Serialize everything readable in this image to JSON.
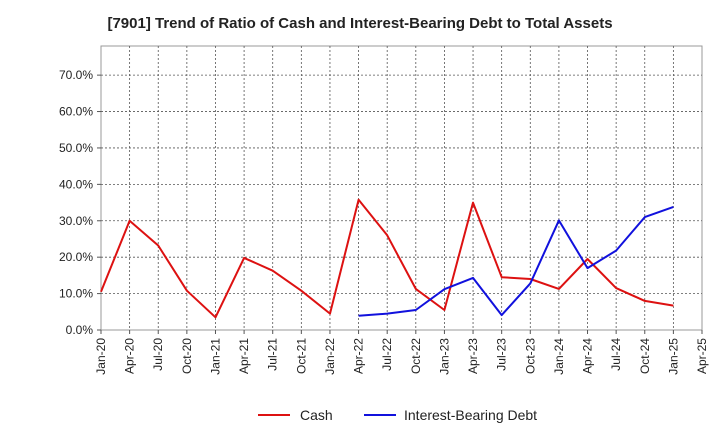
{
  "chart_data": {
    "type": "line",
    "title": "[7901]  Trend of Ratio of Cash and Interest-Bearing Debt to Total Assets",
    "xlabel": "",
    "ylabel": "",
    "ylim": [
      0,
      0.78
    ],
    "y_ticks": [
      0,
      0.1,
      0.2,
      0.3,
      0.4,
      0.5,
      0.6,
      0.7
    ],
    "y_tick_labels": [
      "0.0%",
      "10.0%",
      "20.0%",
      "30.0%",
      "40.0%",
      "50.0%",
      "60.0%",
      "70.0%"
    ],
    "x_ticks": [
      "Jan-20",
      "Apr-20",
      "Jul-20",
      "Oct-20",
      "Jan-21",
      "Apr-21",
      "Jul-21",
      "Oct-21",
      "Jan-22",
      "Apr-22",
      "Jul-22",
      "Oct-22",
      "Jan-23",
      "Apr-23",
      "Jul-23",
      "Oct-23",
      "Jan-24",
      "Apr-24",
      "Jul-24",
      "Oct-24",
      "Jan-25",
      "Apr-25"
    ],
    "grid": true,
    "legend_position": "bottom",
    "series": [
      {
        "name": "Cash",
        "color": "#dd1111",
        "x": [
          "Jan-20",
          "Apr-20",
          "Jul-20",
          "Oct-20",
          "Jan-21",
          "Apr-21",
          "Jul-21",
          "Oct-21",
          "Jan-22",
          "Apr-22",
          "Jul-22",
          "Oct-22",
          "Jan-23",
          "Apr-23",
          "Jul-23",
          "Oct-23",
          "Jan-24",
          "Apr-24",
          "Jul-24",
          "Oct-24",
          "Jan-25"
        ],
        "values": [
          0.105,
          0.3,
          0.232,
          0.108,
          0.035,
          0.198,
          0.163,
          0.108,
          0.045,
          0.358,
          0.26,
          0.113,
          0.055,
          0.35,
          0.145,
          0.14,
          0.113,
          0.195,
          0.115,
          0.08,
          0.067
        ]
      },
      {
        "name": "Interest-Bearing Debt",
        "color": "#1111dd",
        "x": [
          "Apr-22",
          "Jul-22",
          "Oct-22",
          "Jan-23",
          "Apr-23",
          "Jul-23",
          "Oct-23",
          "Jan-24",
          "Apr-24",
          "Jul-24",
          "Oct-24",
          "Jan-25"
        ],
        "values": [
          0.039,
          0.045,
          0.055,
          0.112,
          0.143,
          0.041,
          0.128,
          0.301,
          0.17,
          0.218,
          0.31,
          0.338
        ]
      }
    ]
  }
}
